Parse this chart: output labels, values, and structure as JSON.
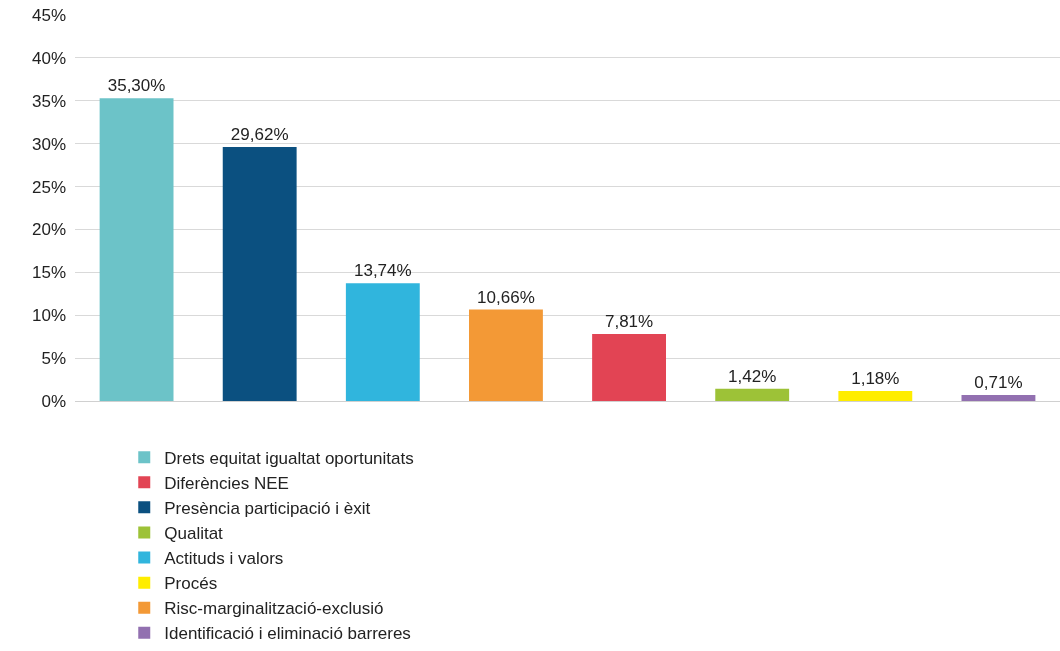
{
  "chart_data": {
    "type": "bar",
    "categories": [
      null,
      null,
      null,
      null,
      null,
      null,
      null,
      null
    ],
    "series": [
      {
        "name": "Drets equitat igualtat oportunitats",
        "color": "#6cc3c8",
        "values": [
          35.3,
          null,
          null,
          null,
          null,
          null,
          null,
          null
        ],
        "value_labels": [
          "35,30%",
          null,
          null,
          null,
          null,
          null,
          null,
          null
        ]
      },
      {
        "name": "Presència participació i èxit",
        "color": "#0b5080",
        "values": [
          null,
          29.62,
          null,
          null,
          null,
          null,
          null,
          null
        ],
        "value_labels": [
          null,
          "29,62%",
          null,
          null,
          null,
          null,
          null,
          null
        ]
      },
      {
        "name": "Actituds i valors",
        "color": "#30b5dd",
        "values": [
          null,
          null,
          13.74,
          null,
          null,
          null,
          null,
          null
        ],
        "value_labels": [
          null,
          null,
          "13,74%",
          null,
          null,
          null,
          null,
          null
        ]
      },
      {
        "name": "Risc-marginalització-exclusió",
        "color": "#f39936",
        "values": [
          null,
          null,
          null,
          10.66,
          null,
          null,
          null,
          null
        ],
        "value_labels": [
          null,
          null,
          null,
          "10,66%",
          null,
          null,
          null,
          null
        ]
      },
      {
        "name": "Diferències NEE",
        "color": "#e24454",
        "values": [
          null,
          null,
          null,
          null,
          7.81,
          null,
          null,
          null
        ],
        "value_labels": [
          null,
          null,
          null,
          null,
          "7,81%",
          null,
          null,
          null
        ]
      },
      {
        "name": "Qualitat",
        "color": "#9dc237",
        "values": [
          null,
          null,
          null,
          null,
          null,
          1.42,
          null,
          null
        ],
        "value_labels": [
          null,
          null,
          null,
          null,
          null,
          "1,42%",
          null,
          null
        ]
      },
      {
        "name": "Procés",
        "color": "#ffed00",
        "values": [
          null,
          null,
          null,
          null,
          null,
          null,
          1.18,
          null
        ],
        "value_labels": [
          null,
          null,
          null,
          null,
          null,
          null,
          "1,18%",
          null
        ]
      },
      {
        "name": "Identificació i eliminació barreres",
        "color": "#9270b0",
        "values": [
          null,
          null,
          null,
          null,
          null,
          null,
          null,
          0.71
        ],
        "value_labels": [
          null,
          null,
          null,
          null,
          null,
          null,
          null,
          "0,71%"
        ]
      }
    ],
    "ylim": [
      0,
      45
    ],
    "yticks": [
      {
        "value": 0,
        "label": "0%"
      },
      {
        "value": 5,
        "label": "5%"
      },
      {
        "value": 10,
        "label": "10%"
      },
      {
        "value": 15,
        "label": "15%"
      },
      {
        "value": 20,
        "label": "20%"
      },
      {
        "value": 25,
        "label": "25%"
      },
      {
        "value": 30,
        "label": "30%"
      },
      {
        "value": 35,
        "label": "35%"
      },
      {
        "value": 40,
        "label": "40%"
      },
      {
        "value": 45,
        "label": "45%"
      }
    ],
    "grid": "y",
    "legend": "bottom",
    "tick_labels": "y"
  }
}
